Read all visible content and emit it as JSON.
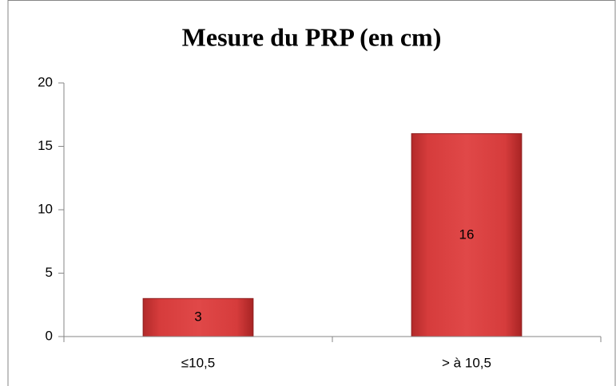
{
  "chart_data": {
    "type": "bar",
    "title": "Mesure du PRP (en cm)",
    "categories": [
      "≤10,5",
      "> à 10,5"
    ],
    "values": [
      3,
      16
    ],
    "color": "#d63c3c",
    "ylim": [
      0,
      20
    ],
    "yticks": [
      0,
      5,
      10,
      15,
      20
    ],
    "grid": false
  }
}
